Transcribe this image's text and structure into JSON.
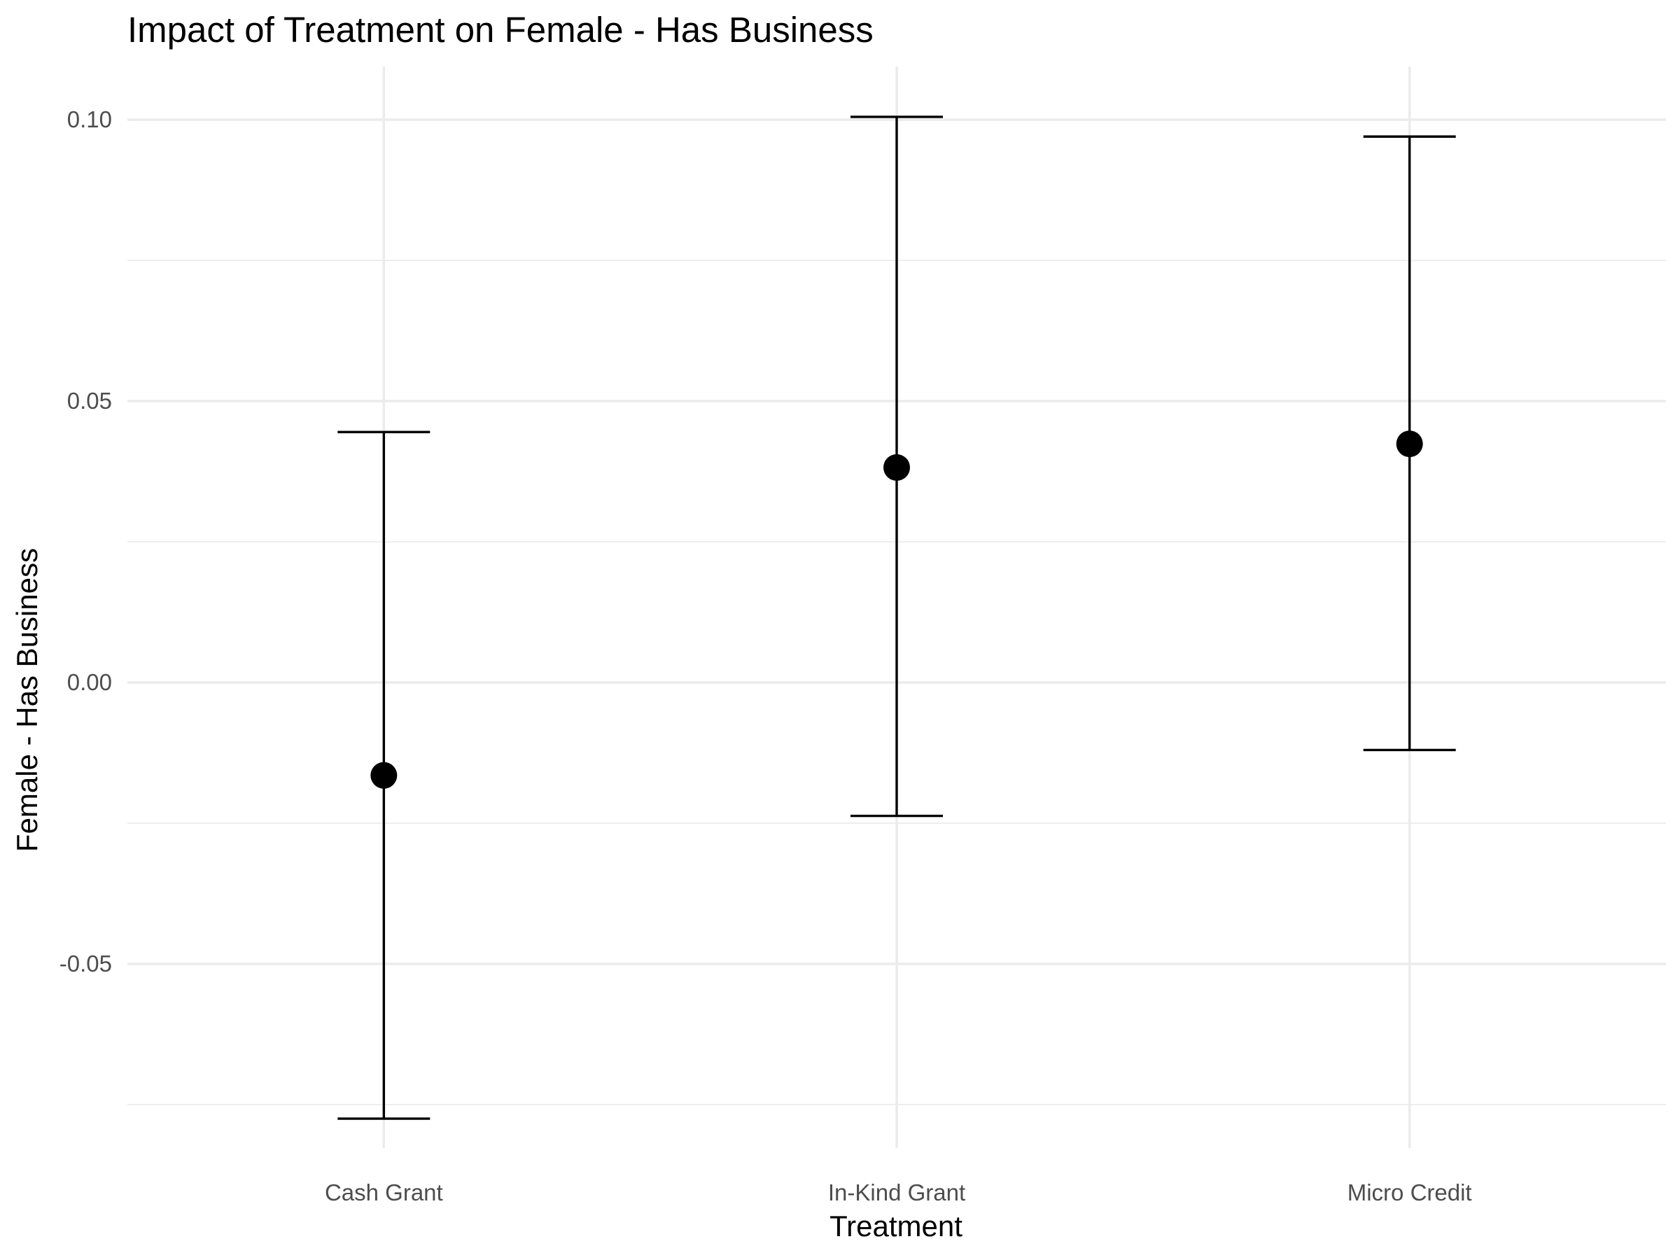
{
  "chart_data": {
    "type": "scatter",
    "title": "Impact of Treatment on Female - Has Business",
    "xlabel": "Treatment",
    "ylabel": "Female - Has Business",
    "categories": [
      "Cash Grant",
      "In-Kind Grant",
      "Micro Credit"
    ],
    "estimates": [
      -0.0165,
      0.0382,
      0.0424
    ],
    "ci_lower": [
      -0.0775,
      -0.0237,
      -0.012
    ],
    "ci_upper": [
      0.0445,
      0.1005,
      0.097
    ],
    "ylim": [
      -0.082,
      0.109
    ],
    "y_ticks": [
      -0.05,
      0.0,
      0.05,
      0.1
    ],
    "y_tick_labels": [
      "-0.05",
      "0.00",
      "0.05",
      "0.10"
    ],
    "grid": true,
    "legend": "none",
    "colors": {
      "point": "#000000",
      "grid": "#ebebeb",
      "tick_text": "#4d4d4d"
    }
  }
}
